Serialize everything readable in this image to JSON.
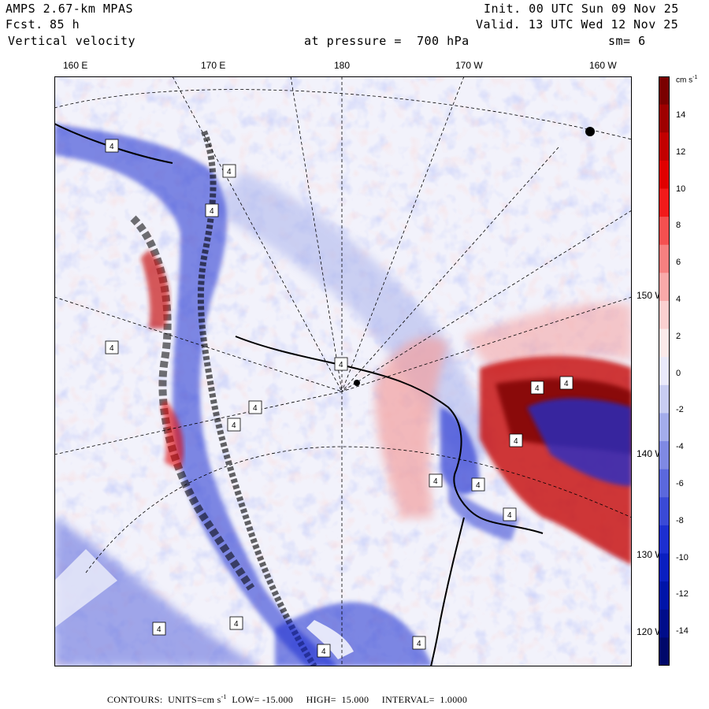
{
  "header": {
    "model": "AMPS 2.67-km MPAS",
    "fcst_label": "Fcst.",
    "fcst_value": "85 h",
    "field": "Vertical velocity",
    "init": "Init. 00 UTC Sun 09 Nov 25",
    "valid": "Valid. 13 UTC Wed 12 Nov 25",
    "level": "at pressure =  700 hPa",
    "smoothing": "sm= 6"
  },
  "longitude_labels": [
    "160 E",
    "170 E",
    "180",
    "170 W",
    "160 W"
  ],
  "latitude_labels": [
    "150 W",
    "140 W",
    "130 W",
    "120 W"
  ],
  "colorbar": {
    "units": "cm s",
    "units_exp": "-1",
    "ticks": [
      "14",
      "12",
      "10",
      "8",
      "6",
      "4",
      "2",
      "0",
      "-2",
      "-4",
      "-6",
      "-8",
      "-10",
      "-12",
      "-14"
    ],
    "colors": [
      "#7a0000",
      "#9e0000",
      "#c20000",
      "#e00000",
      "#f21a1a",
      "#f55050",
      "#f78080",
      "#f9a9a9",
      "#fbd0d0",
      "#fbeaea",
      "#eaeafb",
      "#c8cdf2",
      "#a3aceb",
      "#7f89e3",
      "#5b68dc",
      "#3a4ad6",
      "#1c2fd0",
      "#0a1fc0",
      "#0014a8",
      "#000d8a",
      "#00086a"
    ]
  },
  "footer": {
    "contours_label": "CONTOURS:",
    "units_label": "UNITS=cm s",
    "units_exp": "-1",
    "low": "LOW= -15.000",
    "high": "HIGH=  15.000",
    "interval": "INTERVAL=  1.0000"
  },
  "legend_box_label": "4"
}
